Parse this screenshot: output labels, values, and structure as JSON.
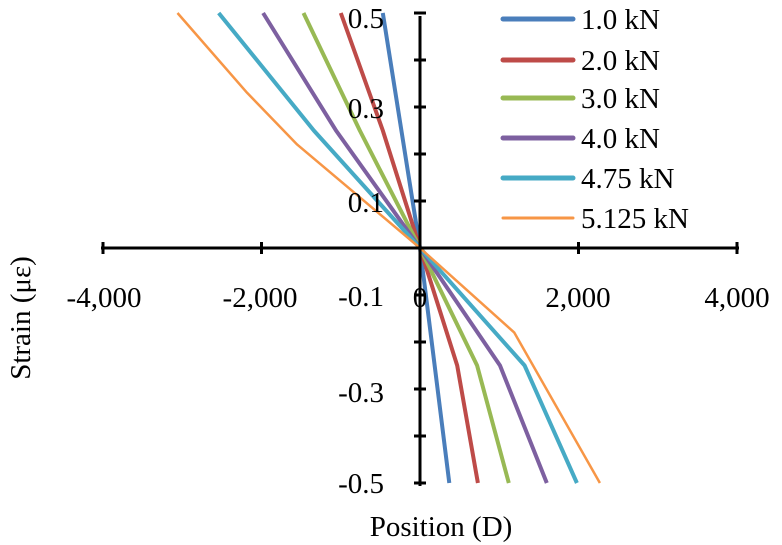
{
  "chart_data": {
    "type": "line",
    "title": "",
    "xlabel": "Position (D)",
    "ylabel": "Strain (με)",
    "xlim": [
      -4000,
      4000
    ],
    "ylim": [
      -0.5,
      0.5
    ],
    "xticks": [
      -4000,
      -2000,
      0,
      2000,
      4000
    ],
    "xtick_labels": [
      "-4,000",
      "-2,000",
      "0",
      "2,000",
      "4,000"
    ],
    "yticks": [
      -0.5,
      -0.3,
      -0.1,
      0.1,
      0.3,
      0.5
    ],
    "ytick_labels": [
      "-0.5",
      "-0.3",
      "-0.1",
      "0.1",
      "0.3",
      "0.5"
    ],
    "grid": false,
    "legend_position": "top-right",
    "series": [
      {
        "name": "1.0 kN",
        "color": "#4a7ebb",
        "x": [
          -470,
          0,
          370
        ],
        "y": [
          0.5,
          0,
          -0.5
        ]
      },
      {
        "name": "2.0 kN",
        "color": "#be4b48",
        "x": [
          -1000,
          -470,
          0,
          470,
          730
        ],
        "y": [
          0.5,
          0.25,
          0,
          -0.25,
          -0.5
        ]
      },
      {
        "name": "3.0 kN",
        "color": "#98b954",
        "x": [
          -1470,
          -760,
          0,
          720,
          1120
        ],
        "y": [
          0.5,
          0.25,
          0,
          -0.25,
          -0.5
        ]
      },
      {
        "name": "4.0 kN",
        "color": "#7d60a0",
        "x": [
          -1980,
          -1060,
          0,
          1010,
          1600
        ],
        "y": [
          0.5,
          0.25,
          0,
          -0.25,
          -0.5
        ]
      },
      {
        "name": "4.75 kN",
        "color": "#46aac5",
        "x": [
          -2540,
          -1340,
          0,
          1320,
          1980
        ],
        "y": [
          0.5,
          0.25,
          0,
          -0.25,
          -0.5
        ]
      },
      {
        "name": "5.125 kN",
        "color": "#f79646",
        "x": [
          -3060,
          -2180,
          -1550,
          0,
          1190,
          2270
        ],
        "y": [
          0.5,
          0.33,
          0.22,
          0,
          -0.18,
          -0.5
        ]
      }
    ]
  }
}
